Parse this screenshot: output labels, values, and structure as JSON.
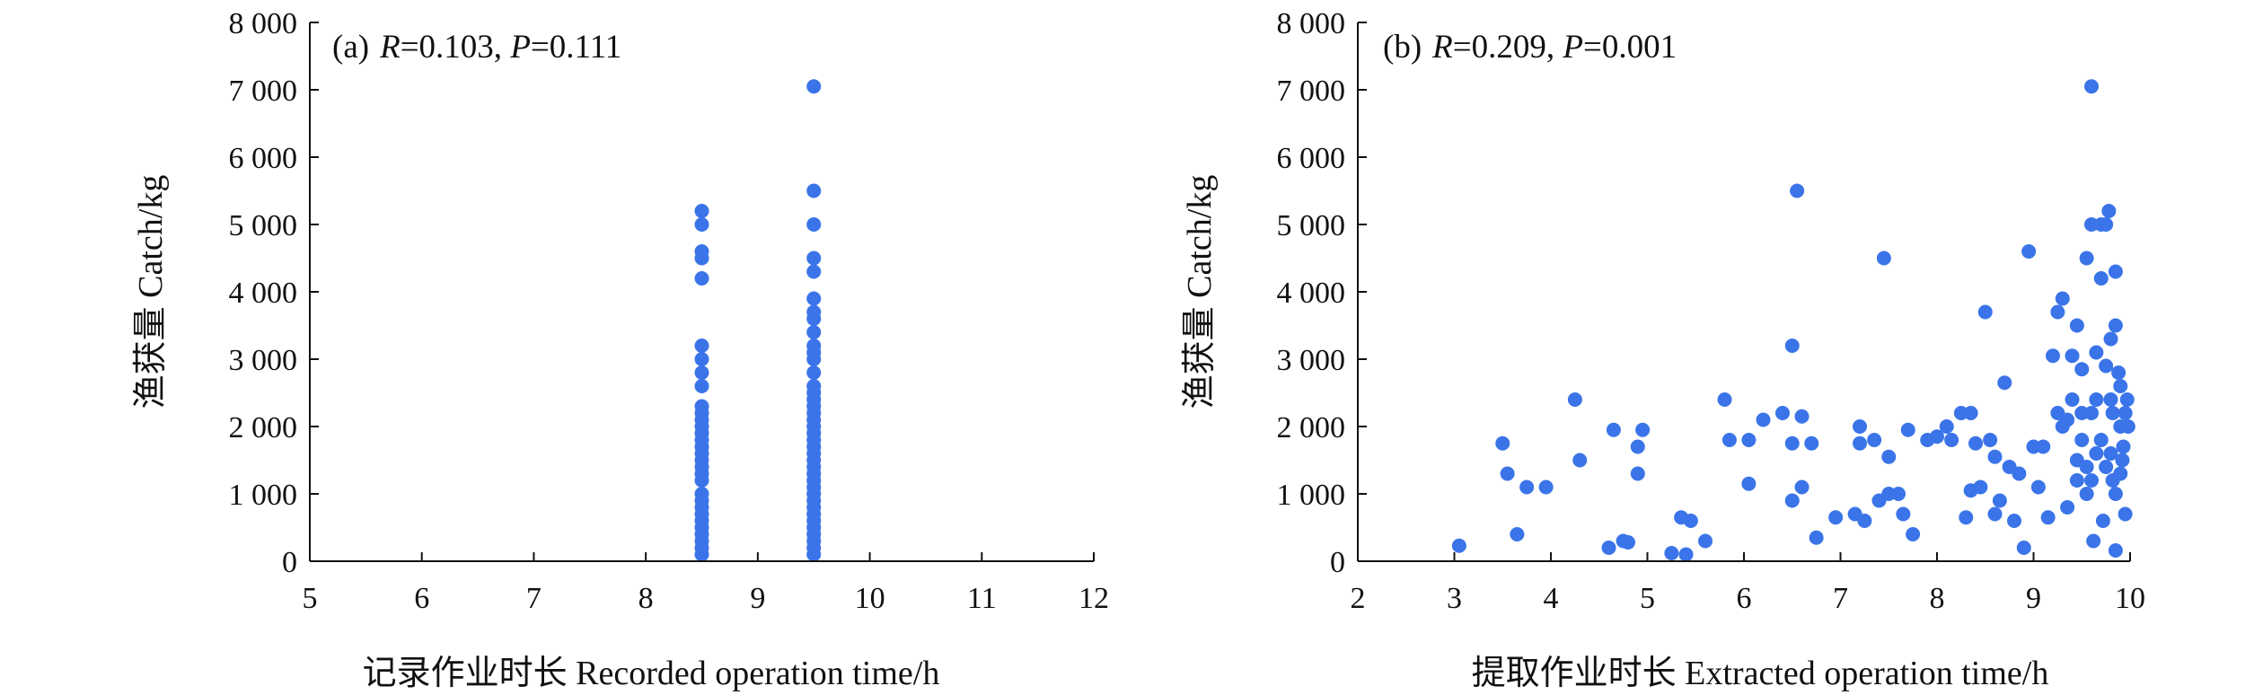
{
  "chart_data": [
    {
      "type": "scatter",
      "panel_label": "(a)",
      "stat_r_symbol": "R",
      "stat_r_value": "=0.103, ",
      "stat_p_symbol": "P",
      "stat_p_value": "=0.111",
      "xlabel": "记录作业时长 Recorded operation time/h",
      "ylabel": "渔获量 Catch/kg",
      "xlim": [
        5,
        12
      ],
      "ylim": [
        0,
        8000
      ],
      "xticks": [
        5,
        6,
        7,
        8,
        9,
        10,
        11,
        12
      ],
      "xtick_labels": [
        "5",
        "6",
        "7",
        "8",
        "9",
        "10",
        "11",
        "12"
      ],
      "yticks": [
        0,
        1000,
        2000,
        3000,
        4000,
        5000,
        6000,
        7000,
        8000
      ],
      "ytick_labels": [
        "0",
        "1 000",
        "2 000",
        "3 000",
        "4 000",
        "5 000",
        "6 000",
        "7 000",
        "8 000"
      ],
      "grid": false,
      "marker_color": "#3a74e8",
      "series": [
        {
          "points": [
            [
              8.5,
              100
            ],
            [
              8.5,
              200
            ],
            [
              8.5,
              300
            ],
            [
              8.5,
              400
            ],
            [
              8.5,
              500
            ],
            [
              8.5,
              600
            ],
            [
              8.5,
              700
            ],
            [
              8.5,
              800
            ],
            [
              8.5,
              900
            ],
            [
              8.5,
              1000
            ],
            [
              8.5,
              1200
            ],
            [
              8.5,
              1300
            ],
            [
              8.5,
              1400
            ],
            [
              8.5,
              1500
            ],
            [
              8.5,
              1600
            ],
            [
              8.5,
              1700
            ],
            [
              8.5,
              1800
            ],
            [
              8.5,
              1900
            ],
            [
              8.5,
              2000
            ],
            [
              8.5,
              2100
            ],
            [
              8.5,
              2200
            ],
            [
              8.5,
              2300
            ],
            [
              8.5,
              2600
            ],
            [
              8.5,
              2800
            ],
            [
              8.5,
              3000
            ],
            [
              8.5,
              3200
            ],
            [
              8.5,
              4200
            ],
            [
              8.5,
              4500
            ],
            [
              8.5,
              4600
            ],
            [
              8.5,
              5000
            ],
            [
              8.5,
              5200
            ],
            [
              9.5,
              100
            ],
            [
              9.5,
              200
            ],
            [
              9.5,
              300
            ],
            [
              9.5,
              400
            ],
            [
              9.5,
              500
            ],
            [
              9.5,
              600
            ],
            [
              9.5,
              700
            ],
            [
              9.5,
              800
            ],
            [
              9.5,
              900
            ],
            [
              9.5,
              1000
            ],
            [
              9.5,
              1100
            ],
            [
              9.5,
              1200
            ],
            [
              9.5,
              1300
            ],
            [
              9.5,
              1400
            ],
            [
              9.5,
              1500
            ],
            [
              9.5,
              1600
            ],
            [
              9.5,
              1700
            ],
            [
              9.5,
              1800
            ],
            [
              9.5,
              1900
            ],
            [
              9.5,
              2000
            ],
            [
              9.5,
              2100
            ],
            [
              9.5,
              2200
            ],
            [
              9.5,
              2300
            ],
            [
              9.5,
              2400
            ],
            [
              9.5,
              2500
            ],
            [
              9.5,
              2600
            ],
            [
              9.5,
              2800
            ],
            [
              9.5,
              3000
            ],
            [
              9.5,
              3100
            ],
            [
              9.5,
              3200
            ],
            [
              9.5,
              3400
            ],
            [
              9.5,
              3600
            ],
            [
              9.5,
              3700
            ],
            [
              9.5,
              3900
            ],
            [
              9.5,
              4300
            ],
            [
              9.5,
              4500
            ],
            [
              9.5,
              5000
            ],
            [
              9.5,
              5500
            ],
            [
              9.5,
              7050
            ]
          ]
        }
      ]
    },
    {
      "type": "scatter",
      "panel_label": "(b)",
      "stat_r_symbol": "R",
      "stat_r_value": "=0.209, ",
      "stat_p_symbol": "P",
      "stat_p_value": "=0.001",
      "xlabel": "提取作业时长 Extracted operation time/h",
      "ylabel": "渔获量 Catch/kg",
      "xlim": [
        2,
        10
      ],
      "ylim": [
        0,
        8000
      ],
      "xticks": [
        2,
        3,
        4,
        5,
        6,
        7,
        8,
        9,
        10
      ],
      "xtick_labels": [
        "2",
        "3",
        "4",
        "5",
        "6",
        "7",
        "8",
        "9",
        "10"
      ],
      "yticks": [
        0,
        1000,
        2000,
        3000,
        4000,
        5000,
        6000,
        7000,
        8000
      ],
      "ytick_labels": [
        "0",
        "1 000",
        "2 000",
        "3 000",
        "4 000",
        "5 000",
        "6 000",
        "7 000",
        "8 000"
      ],
      "grid": false,
      "marker_color": "#3a74e8",
      "series": [
        {
          "points": [
            [
              3.05,
              230
            ],
            [
              3.5,
              1750
            ],
            [
              3.55,
              1300
            ],
            [
              3.65,
              400
            ],
            [
              3.75,
              1100
            ],
            [
              3.95,
              1100
            ],
            [
              4.25,
              2400
            ],
            [
              4.3,
              1500
            ],
            [
              4.6,
              200
            ],
            [
              4.65,
              1950
            ],
            [
              4.75,
              300
            ],
            [
              4.8,
              280
            ],
            [
              4.9,
              1700
            ],
            [
              4.9,
              1300
            ],
            [
              4.95,
              1950
            ],
            [
              5.25,
              120
            ],
            [
              5.35,
              650
            ],
            [
              5.4,
              100
            ],
            [
              5.45,
              600
            ],
            [
              5.6,
              300
            ],
            [
              5.8,
              2400
            ],
            [
              5.85,
              1800
            ],
            [
              6.05,
              1800
            ],
            [
              6.05,
              1150
            ],
            [
              6.2,
              2100
            ],
            [
              6.4,
              2200
            ],
            [
              6.5,
              3200
            ],
            [
              6.5,
              1750
            ],
            [
              6.5,
              900
            ],
            [
              6.55,
              5500
            ],
            [
              6.6,
              2150
            ],
            [
              6.6,
              1100
            ],
            [
              6.7,
              1750
            ],
            [
              6.75,
              350
            ],
            [
              6.95,
              650
            ],
            [
              7.15,
              700
            ],
            [
              7.2,
              2000
            ],
            [
              7.2,
              1750
            ],
            [
              7.25,
              600
            ],
            [
              7.35,
              1800
            ],
            [
              7.4,
              900
            ],
            [
              7.45,
              4500
            ],
            [
              7.5,
              1000
            ],
            [
              7.5,
              1550
            ],
            [
              7.6,
              1000
            ],
            [
              7.65,
              700
            ],
            [
              7.7,
              1950
            ],
            [
              7.75,
              400
            ],
            [
              7.9,
              1800
            ],
            [
              8.0,
              1850
            ],
            [
              8.1,
              2000
            ],
            [
              8.15,
              1800
            ],
            [
              8.25,
              2200
            ],
            [
              8.3,
              650
            ],
            [
              8.35,
              2200
            ],
            [
              8.35,
              1050
            ],
            [
              8.4,
              1750
            ],
            [
              8.45,
              1100
            ],
            [
              8.5,
              3700
            ],
            [
              8.55,
              1800
            ],
            [
              8.6,
              1550
            ],
            [
              8.6,
              700
            ],
            [
              8.65,
              900
            ],
            [
              8.7,
              2650
            ],
            [
              8.75,
              1400
            ],
            [
              8.8,
              600
            ],
            [
              8.85,
              1300
            ],
            [
              8.9,
              200
            ],
            [
              8.95,
              4600
            ],
            [
              9.0,
              1700
            ],
            [
              9.05,
              1100
            ],
            [
              9.1,
              1700
            ],
            [
              9.15,
              650
            ],
            [
              9.2,
              3050
            ],
            [
              9.25,
              3700
            ],
            [
              9.25,
              2200
            ],
            [
              9.3,
              3900
            ],
            [
              9.3,
              2000
            ],
            [
              9.35,
              800
            ],
            [
              9.4,
              3050
            ],
            [
              9.4,
              2400
            ],
            [
              9.45,
              3500
            ],
            [
              9.45,
              1500
            ],
            [
              9.5,
              2850
            ],
            [
              9.5,
              1800
            ],
            [
              9.55,
              4500
            ],
            [
              9.55,
              1000
            ],
            [
              9.6,
              5000
            ],
            [
              9.6,
              7050
            ],
            [
              9.6,
              2200
            ],
            [
              9.62,
              300
            ],
            [
              9.65,
              3100
            ],
            [
              9.65,
              1600
            ],
            [
              9.7,
              4200
            ],
            [
              9.7,
              5000
            ],
            [
              9.75,
              5000
            ],
            [
              9.75,
              2900
            ],
            [
              9.78,
              5200
            ],
            [
              9.8,
              3300
            ],
            [
              9.8,
              2400
            ],
            [
              9.82,
              1200
            ],
            [
              9.85,
              4300
            ],
            [
              9.85,
              3500
            ],
            [
              9.85,
              160
            ],
            [
              9.9,
              2600
            ],
            [
              9.9,
              2000
            ],
            [
              9.92,
              1500
            ],
            [
              9.95,
              700
            ],
            [
              9.97,
              2400
            ],
            [
              9.98,
              2000
            ],
            [
              9.35,
              2100
            ],
            [
              9.45,
              1200
            ],
            [
              9.5,
              2200
            ],
            [
              9.55,
              1400
            ],
            [
              9.6,
              1200
            ],
            [
              9.65,
              2400
            ],
            [
              9.7,
              1800
            ],
            [
              9.72,
              600
            ],
            [
              9.75,
              1400
            ],
            [
              9.8,
              1600
            ],
            [
              9.82,
              2200
            ],
            [
              9.85,
              1000
            ],
            [
              9.88,
              2800
            ],
            [
              9.9,
              1300
            ],
            [
              9.93,
              1700
            ],
            [
              9.95,
              2200
            ]
          ]
        }
      ]
    }
  ]
}
